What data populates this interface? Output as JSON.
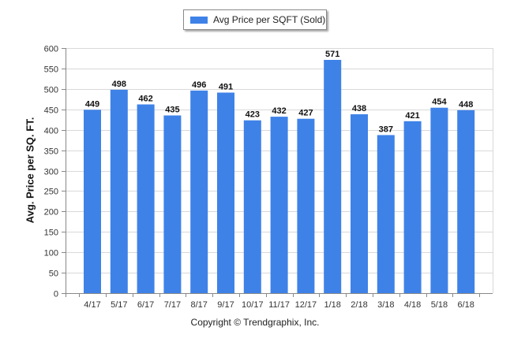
{
  "chart_data": {
    "type": "bar",
    "categories": [
      "4/17",
      "5/17",
      "6/17",
      "7/17",
      "8/17",
      "9/17",
      "10/17",
      "11/17",
      "12/17",
      "1/18",
      "2/18",
      "3/18",
      "4/18",
      "5/18",
      "6/18"
    ],
    "series": [
      {
        "name": "Avg Price per SQFT (Sold)",
        "values": [
          449,
          498,
          462,
          435,
          496,
          491,
          423,
          432,
          427,
          571,
          438,
          387,
          421,
          454,
          448
        ]
      }
    ],
    "title": "",
    "xlabel": "",
    "ylabel": "Avg. Price per SQ. FT.",
    "ylim": [
      0,
      600
    ],
    "yticks": [
      0,
      50,
      100,
      150,
      200,
      250,
      300,
      350,
      400,
      450,
      500,
      550,
      600
    ],
    "grid": true,
    "legend_position": "top-center",
    "data_labels": true,
    "bar_color": "#3e82e8"
  },
  "footer": "Copyright © Trendgraphix, Inc."
}
